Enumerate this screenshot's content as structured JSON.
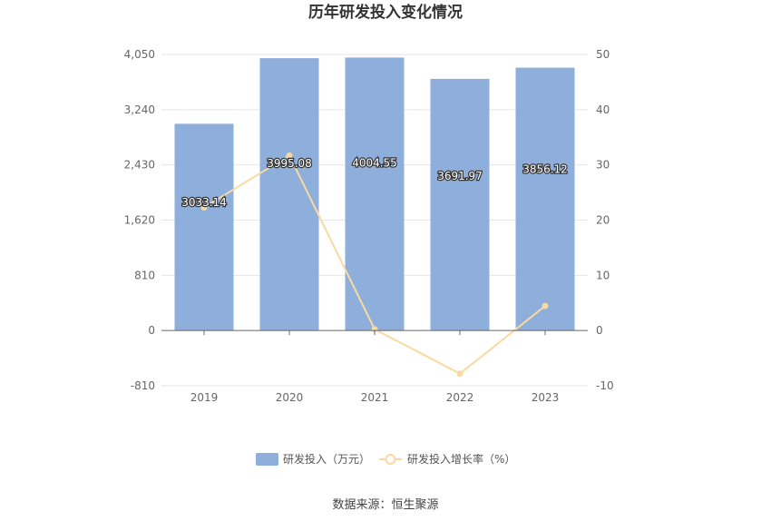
{
  "chart_data": {
    "type": "bar",
    "title": "历年研发投入变化情况",
    "categories": [
      "2019",
      "2020",
      "2021",
      "2022",
      "2023"
    ],
    "series": [
      {
        "name": "研发投入（万元）",
        "type": "bar",
        "axis": "left",
        "values": [
          3033.14,
          3995.08,
          4004.55,
          3691.97,
          3856.12
        ],
        "labels": [
          "3033.14",
          "3995.08",
          "4004.55",
          "3691.97",
          "3856.12"
        ],
        "color": "#8eaedb"
      },
      {
        "name": "研发投入增长率（%）",
        "type": "line",
        "axis": "right",
        "values": [
          22.3,
          31.7,
          0.24,
          -7.81,
          4.45
        ],
        "color": "#f8d9a0"
      }
    ],
    "y_left": {
      "ticks": [
        "4,050",
        "3,240",
        "2,430",
        "1,620",
        "810",
        "0",
        "-810"
      ],
      "ylim": [
        -810,
        4050
      ]
    },
    "y_right": {
      "ticks": [
        "50",
        "40",
        "30",
        "20",
        "10",
        "0",
        "-10"
      ],
      "ylim": [
        -10,
        50
      ]
    },
    "grid": true,
    "legend_position": "bottom-center",
    "source": "数据来源：恒生聚源"
  }
}
